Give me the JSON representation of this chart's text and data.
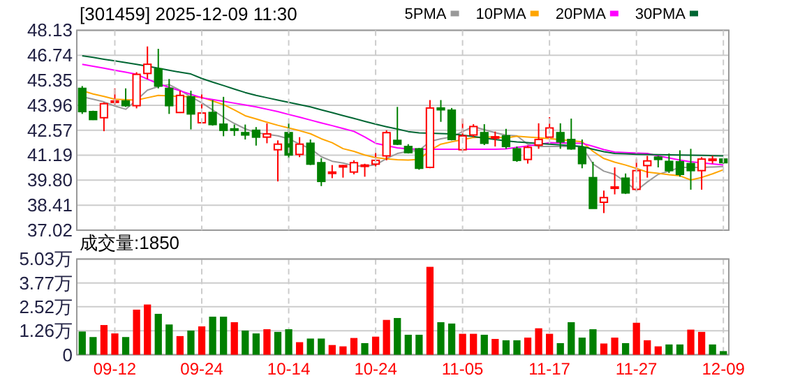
{
  "chart_data": [
    {
      "type": "candlestick",
      "title": "[301459] 2025-12-09 11:30",
      "categories": [
        null,
        null,
        null,
        null,
        null,
        null,
        null,
        null,
        null,
        null,
        null,
        null,
        null,
        null,
        null,
        null,
        null,
        null,
        null,
        null,
        null,
        null,
        null,
        null,
        null,
        null,
        null,
        null,
        null,
        null,
        null,
        null,
        null,
        null,
        null,
        null,
        null,
        null,
        null,
        null,
        null,
        null,
        null,
        null,
        null,
        null,
        null,
        null,
        null,
        null,
        null,
        null,
        null,
        null,
        null,
        null,
        null,
        null,
        null,
        null
      ],
      "ohlc": [
        [
          44.9,
          45.03,
          43.48,
          43.61
        ],
        [
          43.61,
          43.66,
          43.14,
          43.17
        ],
        [
          43.27,
          44.12,
          42.52,
          44.05
        ],
        [
          44.12,
          44.9,
          43.99,
          44.2
        ],
        [
          44.2,
          44.9,
          43.87,
          43.94
        ],
        [
          43.94,
          45.8,
          43.79,
          45.68
        ],
        [
          45.73,
          47.23,
          45.42,
          46.24
        ],
        [
          45.98,
          47.1,
          44.9,
          45.03
        ],
        [
          44.9,
          45.42,
          43.48,
          43.94
        ],
        [
          43.56,
          44.77,
          43.53,
          44.51
        ],
        [
          44.43,
          44.77,
          42.62,
          43.48
        ],
        [
          42.99,
          44.64,
          42.96,
          43.53
        ],
        [
          43.56,
          44.25,
          42.83,
          42.89
        ],
        [
          42.91,
          44.43,
          42.24,
          42.57
        ],
        [
          42.65,
          42.89,
          42.26,
          42.57
        ],
        [
          42.44,
          42.89,
          42.06,
          42.31
        ],
        [
          42.57,
          42.75,
          41.72,
          42.19
        ],
        [
          42.19,
          42.96,
          41.85,
          42.37
        ],
        [
          41.49,
          42.01,
          39.73,
          41.8
        ],
        [
          42.44,
          42.96,
          41.02,
          41.2
        ],
        [
          41.23,
          42.19,
          41.08,
          41.8
        ],
        [
          41.85,
          42.06,
          40.64,
          40.69
        ],
        [
          40.77,
          41.02,
          39.47,
          39.73
        ],
        [
          40.2,
          40.64,
          39.91,
          40.25
        ],
        [
          40.56,
          40.64,
          39.94,
          40.61
        ],
        [
          40.25,
          40.9,
          40.12,
          40.77
        ],
        [
          40.59,
          40.71,
          39.99,
          40.64
        ],
        [
          40.69,
          41.33,
          40.56,
          40.9
        ],
        [
          41.15,
          42.57,
          40.9,
          42.44
        ],
        [
          42.01,
          43.87,
          41.75,
          41.8
        ],
        [
          41.67,
          41.8,
          41.28,
          41.33
        ],
        [
          41.54,
          41.59,
          40.38,
          40.46
        ],
        [
          40.51,
          44.25,
          40.46,
          43.81
        ],
        [
          43.81,
          44.25,
          43.04,
          43.71
        ],
        [
          43.69,
          43.81,
          42.01,
          42.06
        ],
        [
          41.49,
          43.22,
          41.41,
          42.26
        ],
        [
          42.31,
          42.91,
          42.19,
          42.78
        ],
        [
          42.44,
          42.91,
          41.75,
          41.85
        ],
        [
          42.16,
          42.5,
          41.67,
          42.21
        ],
        [
          42.26,
          42.65,
          41.54,
          41.67
        ],
        [
          41.54,
          41.67,
          40.82,
          40.9
        ],
        [
          40.95,
          41.72,
          40.72,
          41.62
        ],
        [
          41.75,
          42.96,
          41.54,
          42.06
        ],
        [
          42.19,
          43.3,
          42.11,
          42.7
        ],
        [
          42.44,
          42.96,
          41.54,
          41.93
        ],
        [
          42.06,
          43.22,
          41.49,
          41.54
        ],
        [
          41.62,
          42.06,
          40.46,
          40.72
        ],
        [
          39.94,
          40.82,
          38.23,
          38.23
        ],
        [
          38.57,
          39.22,
          37.97,
          38.83
        ],
        [
          39.37,
          40.51,
          39.01,
          39.42
        ],
        [
          39.91,
          40.17,
          39.03,
          39.09
        ],
        [
          39.29,
          40.97,
          39.22,
          40.33
        ],
        [
          40.61,
          41.15,
          39.94,
          40.87
        ],
        [
          41.08,
          41.15,
          40.51,
          40.95
        ],
        [
          40.84,
          41.28,
          40.2,
          40.33
        ],
        [
          40.82,
          41.46,
          39.99,
          40.12
        ],
        [
          40.72,
          41.54,
          39.27,
          40.33
        ],
        [
          40.33,
          41.08,
          39.27,
          40.97
        ],
        [
          40.92,
          41.15,
          40.72,
          40.97
        ],
        [
          40.97,
          41.02,
          40.72,
          40.77
        ]
      ],
      "colors": [
        "#008000",
        "#008000",
        "#ff0000",
        "#ff0000",
        "#008000",
        "#ff0000",
        "#ff0000",
        "#008000",
        "#008000",
        "#ff0000",
        "#008000",
        "#ff0000",
        "#008000",
        "#008000",
        "#008000",
        "#008000",
        "#008000",
        "#ff0000",
        "#ff0000",
        "#008000",
        "#ff0000",
        "#008000",
        "#008000",
        "#ff0000",
        "#ff0000",
        "#ff0000",
        "#ff0000",
        "#ff0000",
        "#ff0000",
        "#008000",
        "#008000",
        "#008000",
        "#ff0000",
        "#008000",
        "#008000",
        "#ff0000",
        "#ff0000",
        "#008000",
        "#ff0000",
        "#008000",
        "#008000",
        "#ff0000",
        "#ff0000",
        "#ff0000",
        "#008000",
        "#008000",
        "#008000",
        "#008000",
        "#ff0000",
        "#ff0000",
        "#008000",
        "#ff0000",
        "#ff0000",
        "#008000",
        "#008000",
        "#008000",
        "#008000",
        "#ff0000",
        "#ff0000",
        "#008000"
      ],
      "series": [
        {
          "type": "line",
          "name": "5PMA",
          "color": "#999999",
          "values": [
            44.43,
            44.3,
            44.15,
            43.92,
            43.74,
            44.25,
            44.8,
            45.0,
            45.11,
            44.8,
            44.43,
            44.1,
            43.7,
            43.3,
            42.95,
            42.65,
            42.44,
            42.35,
            42.26,
            42.1,
            41.8,
            41.55,
            41.1,
            40.85,
            40.75,
            40.6,
            40.58,
            40.65,
            41.0,
            41.28,
            41.4,
            41.45,
            41.95,
            42.1,
            42.2,
            42.5,
            42.78,
            42.6,
            42.44,
            42.3,
            42.26,
            41.8,
            41.67,
            41.67,
            41.67,
            41.67,
            41.67,
            40.7,
            40.3,
            40.12,
            39.7,
            39.22,
            39.7,
            40.12,
            40.3,
            40.51,
            40.51,
            40.51,
            40.53,
            40.56
          ]
        },
        {
          "type": "line",
          "name": "10PMA",
          "color": "#ffa500",
          "values": [
            44.77,
            44.59,
            44.45,
            44.3,
            44.27,
            44.25,
            44.38,
            44.51,
            44.48,
            44.45,
            44.43,
            44.4,
            44.2,
            44.0,
            43.7,
            43.38,
            43.2,
            43.02,
            42.85,
            42.7,
            42.55,
            42.38,
            42.1,
            41.88,
            41.55,
            41.4,
            41.2,
            41.05,
            40.98,
            40.94,
            40.92,
            40.95,
            41.45,
            41.8,
            41.93,
            42.05,
            42.17,
            42.2,
            42.2,
            42.15,
            42.24,
            42.2,
            42.16,
            42.11,
            42.05,
            41.99,
            41.93,
            41.4,
            41.0,
            40.8,
            40.64,
            40.45,
            40.25,
            40.18,
            40.1,
            40.04,
            39.81,
            39.95,
            40.15,
            40.38
          ]
        },
        {
          "type": "line",
          "name": "20PMA",
          "color": "#ff00ff",
          "values": [
            46.24,
            46.13,
            46.02,
            45.91,
            45.8,
            45.68,
            45.42,
            45.16,
            44.96,
            44.77,
            44.57,
            44.38,
            44.28,
            44.18,
            44.08,
            43.98,
            43.87,
            43.74,
            43.61,
            43.45,
            43.3,
            43.14,
            42.98,
            42.83,
            42.67,
            42.51,
            42.2,
            41.85,
            41.72,
            41.59,
            41.54,
            41.52,
            41.52,
            41.52,
            41.52,
            41.52,
            41.52,
            41.52,
            41.52,
            41.54,
            41.62,
            41.7,
            41.79,
            41.88,
            41.87,
            41.86,
            41.85,
            41.68,
            41.5,
            41.36,
            41.33,
            41.3,
            41.28,
            41.15,
            41.03,
            40.92,
            40.82,
            40.76,
            40.7,
            40.64
          ]
        },
        {
          "type": "line",
          "name": "30PMA",
          "color": "#006633",
          "values": [
            46.71,
            46.62,
            46.52,
            46.43,
            46.33,
            46.24,
            46.13,
            46.02,
            45.91,
            45.8,
            45.7,
            45.45,
            45.25,
            45.06,
            44.86,
            44.67,
            44.51,
            44.38,
            44.25,
            44.12,
            44.0,
            43.87,
            43.71,
            43.55,
            43.39,
            43.23,
            43.07,
            42.91,
            42.77,
            42.64,
            42.5,
            42.43,
            42.41,
            42.39,
            42.37,
            42.3,
            42.22,
            42.14,
            42.06,
            41.98,
            41.92,
            41.88,
            41.84,
            41.8,
            41.76,
            41.72,
            41.67,
            41.52,
            41.38,
            41.28,
            41.26,
            41.24,
            41.23,
            41.22,
            41.21,
            41.2,
            41.19,
            41.18,
            41.16,
            41.15
          ]
        }
      ],
      "ylim": [
        37.02,
        48.13
      ],
      "yticks": [
        37.02,
        38.41,
        {
          "value": 39.8,
          "label": "39.80"
        },
        41.19,
        42.57,
        43.96,
        45.35,
        46.74,
        48.13
      ],
      "grid": "y",
      "legend": "top right",
      "tick_labels": "y"
    },
    {
      "type": "bar",
      "title": "成交量:1850",
      "categories": [
        null,
        null,
        null,
        "09-12",
        null,
        null,
        null,
        null,
        null,
        null,
        null,
        "09-24",
        null,
        null,
        null,
        null,
        null,
        null,
        null,
        "10-14",
        null,
        null,
        null,
        null,
        null,
        null,
        null,
        "10-24",
        null,
        null,
        null,
        null,
        null,
        null,
        null,
        "11-05",
        null,
        null,
        null,
        null,
        null,
        null,
        null,
        "11-17",
        null,
        null,
        null,
        null,
        null,
        null,
        null,
        "11-27",
        null,
        null,
        null,
        null,
        null,
        null,
        null,
        "12-09"
      ],
      "values": [
        1.22,
        0.93,
        1.56,
        1.12,
        0.93,
        2.37,
        2.64,
        2.15,
        1.59,
        0.98,
        1.27,
        1.49,
        2.0,
        2.0,
        1.71,
        1.27,
        1.12,
        1.34,
        1.2,
        1.34,
        0.66,
        0.85,
        0.85,
        0.51,
        0.44,
        0.88,
        0.61,
        0.95,
        1.83,
        1.93,
        1.05,
        1.05,
        4.62,
        1.71,
        1.64,
        1.1,
        1.1,
        1.05,
        0.83,
        0.76,
        0.76,
        0.9,
        1.39,
        1.1,
        0.61,
        1.71,
        0.9,
        1.34,
        0.59,
        0.9,
        0.61,
        1.68,
        0.76,
        0.44,
        0.54,
        0.54,
        1.32,
        1.2,
        0.54,
        0.19
      ],
      "colors": [
        "#008000",
        "#008000",
        "#ff0000",
        "#ff0000",
        "#008000",
        "#ff0000",
        "#ff0000",
        "#008000",
        "#008000",
        "#ff0000",
        "#008000",
        "#ff0000",
        "#008000",
        "#008000",
        "#ff0000",
        "#008000",
        "#008000",
        "#ff0000",
        "#008000",
        "#008000",
        "#ff0000",
        "#008000",
        "#008000",
        "#ff0000",
        "#ff0000",
        "#ff0000",
        "#008000",
        "#ff0000",
        "#ff0000",
        "#008000",
        "#008000",
        "#008000",
        "#ff0000",
        "#008000",
        "#008000",
        "#ff0000",
        "#ff0000",
        "#008000",
        "#ff0000",
        "#008000",
        "#008000",
        "#ff0000",
        "#ff0000",
        "#ff0000",
        "#008000",
        "#008000",
        "#008000",
        "#008000",
        "#ff0000",
        "#ff0000",
        "#008000",
        "#ff0000",
        "#ff0000",
        "#ff0000",
        "#008000",
        "#008000",
        "#ff0000",
        "#ff0000",
        "#008000",
        "#008000"
      ],
      "ylim": [
        0,
        5.03
      ],
      "yticks": [
        0,
        {
          "value": 1.26,
          "label": "1.26万"
        },
        {
          "value": 2.52,
          "label": "2.52万"
        },
        {
          "value": 3.77,
          "label": "3.77万"
        },
        {
          "value": 5.03,
          "label": "5.03万"
        }
      ],
      "grid": true
    }
  ]
}
